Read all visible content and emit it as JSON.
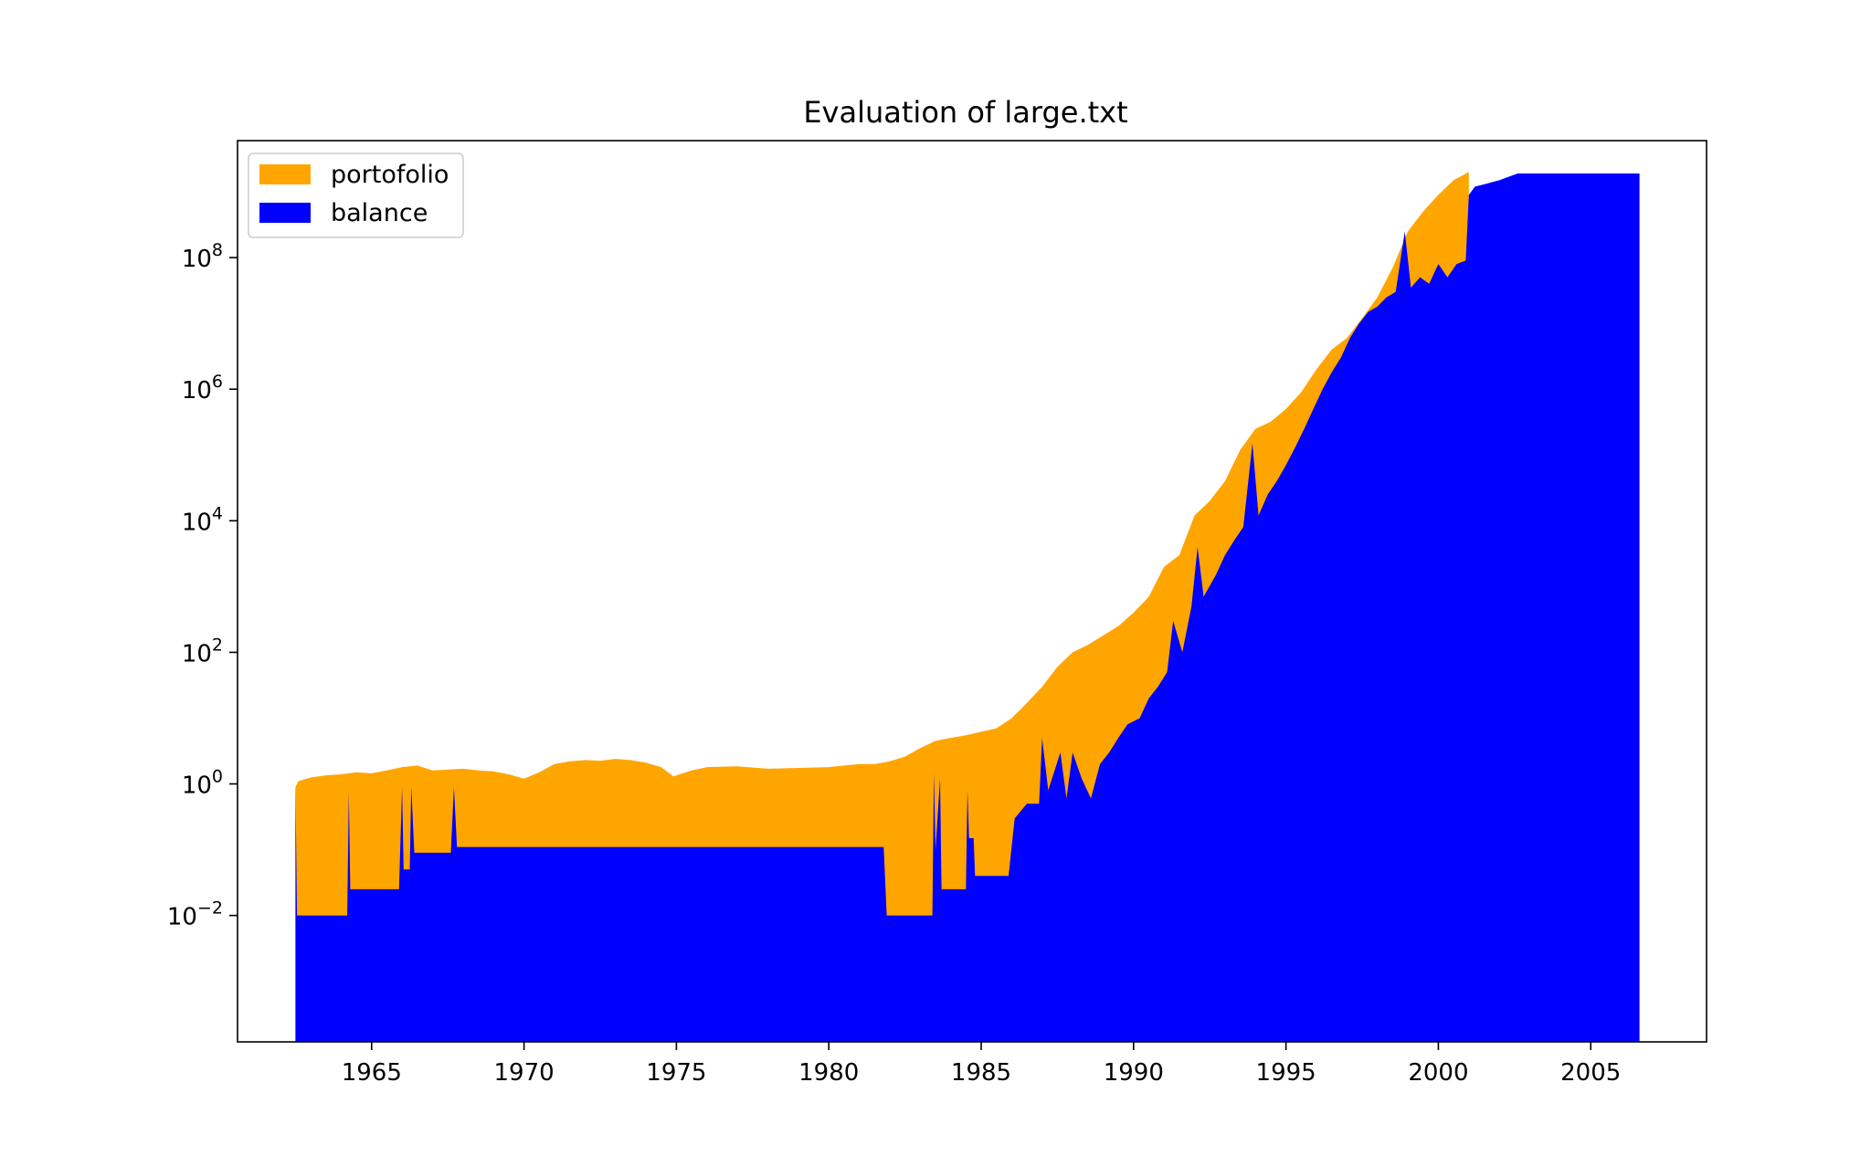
{
  "chart_data": {
    "type": "area",
    "title": "Evaluation of large.txt",
    "xlabel": "",
    "ylabel": "",
    "yscale": "log",
    "xlim": [
      1960.6,
      2008.8
    ],
    "ylim": [
      0.00012,
      6000000000
    ],
    "x_ticks": [
      1965,
      1970,
      1975,
      1980,
      1985,
      1990,
      1995,
      2000,
      2005
    ],
    "x_tick_labels": [
      "1965",
      "1970",
      "1975",
      "1980",
      "1985",
      "1990",
      "1995",
      "2000",
      "2005"
    ],
    "y_ticks": [
      {
        "value": 0.01,
        "base": "10",
        "exp": "−2"
      },
      {
        "value": 1,
        "base": "10",
        "exp": "0"
      },
      {
        "value": 100,
        "base": "10",
        "exp": "2"
      },
      {
        "value": 10000,
        "base": "10",
        "exp": "4"
      },
      {
        "value": 1000000,
        "base": "10",
        "exp": "6"
      },
      {
        "value": 100000000,
        "base": "10",
        "exp": "8"
      }
    ],
    "legend": {
      "position": "top-left",
      "entries": [
        "portofolio",
        "balance"
      ]
    },
    "grid": false,
    "series": [
      {
        "name": "portofolio",
        "color": "#FFA500",
        "points": [
          [
            1962.5,
            0.9
          ],
          [
            1962.6,
            1.1
          ],
          [
            1963.0,
            1.25
          ],
          [
            1963.5,
            1.35
          ],
          [
            1964.0,
            1.4
          ],
          [
            1964.5,
            1.5
          ],
          [
            1965.0,
            1.45
          ],
          [
            1965.5,
            1.6
          ],
          [
            1966.0,
            1.8
          ],
          [
            1966.5,
            1.9
          ],
          [
            1967.0,
            1.6
          ],
          [
            1967.5,
            1.65
          ],
          [
            1968.0,
            1.7
          ],
          [
            1968.5,
            1.6
          ],
          [
            1969.0,
            1.55
          ],
          [
            1969.5,
            1.4
          ],
          [
            1970.0,
            1.2
          ],
          [
            1970.5,
            1.5
          ],
          [
            1971.0,
            2.0
          ],
          [
            1971.5,
            2.2
          ],
          [
            1972.0,
            2.3
          ],
          [
            1972.5,
            2.25
          ],
          [
            1973.0,
            2.4
          ],
          [
            1973.5,
            2.3
          ],
          [
            1974.0,
            2.1
          ],
          [
            1974.5,
            1.8
          ],
          [
            1974.9,
            1.3
          ],
          [
            1975.5,
            1.6
          ],
          [
            1976.0,
            1.8
          ],
          [
            1977.0,
            1.85
          ],
          [
            1978.0,
            1.7
          ],
          [
            1979.0,
            1.75
          ],
          [
            1980.0,
            1.8
          ],
          [
            1980.5,
            1.9
          ],
          [
            1981.0,
            2.0
          ],
          [
            1981.5,
            2.0
          ],
          [
            1982.0,
            2.2
          ],
          [
            1982.5,
            2.6
          ],
          [
            1983.0,
            3.5
          ],
          [
            1983.5,
            4.5
          ],
          [
            1984.0,
            5.0
          ],
          [
            1984.5,
            5.5
          ],
          [
            1985.0,
            6.2
          ],
          [
            1985.5,
            7.0
          ],
          [
            1986.0,
            10
          ],
          [
            1986.5,
            17
          ],
          [
            1987.0,
            30
          ],
          [
            1987.5,
            60
          ],
          [
            1988.0,
            100
          ],
          [
            1988.5,
            130
          ],
          [
            1989.0,
            180
          ],
          [
            1989.5,
            250
          ],
          [
            1990.0,
            400
          ],
          [
            1990.5,
            700
          ],
          [
            1991.0,
            2000
          ],
          [
            1991.5,
            3000
          ],
          [
            1992.0,
            12000
          ],
          [
            1992.5,
            20000
          ],
          [
            1993.0,
            40000
          ],
          [
            1993.5,
            120000
          ],
          [
            1994.0,
            250000
          ],
          [
            1994.5,
            320000
          ],
          [
            1995.0,
            500000
          ],
          [
            1995.5,
            900000
          ],
          [
            1996.0,
            2000000
          ],
          [
            1996.5,
            4000000
          ],
          [
            1997.0,
            6000000
          ],
          [
            1997.5,
            12000000
          ],
          [
            1998.0,
            25000000
          ],
          [
            1998.5,
            70000000
          ],
          [
            1999.0,
            250000000
          ],
          [
            1999.5,
            500000000
          ],
          [
            2000.0,
            900000000
          ],
          [
            2000.5,
            1500000000
          ],
          [
            2001.0,
            2000000000
          ]
        ]
      },
      {
        "name": "balance",
        "color": "#0000FF",
        "points": [
          [
            1962.5,
            0.9
          ],
          [
            1962.55,
            0.01
          ],
          [
            1964.2,
            0.01
          ],
          [
            1964.25,
            0.75
          ],
          [
            1964.3,
            0.025
          ],
          [
            1965.9,
            0.025
          ],
          [
            1966.0,
            0.9
          ],
          [
            1966.05,
            0.05
          ],
          [
            1966.25,
            0.05
          ],
          [
            1966.3,
            0.9
          ],
          [
            1966.4,
            0.09
          ],
          [
            1967.6,
            0.09
          ],
          [
            1967.7,
            0.9
          ],
          [
            1967.8,
            0.11
          ],
          [
            1981.8,
            0.11
          ],
          [
            1981.9,
            0.01
          ],
          [
            1983.4,
            0.01
          ],
          [
            1983.45,
            1.5
          ],
          [
            1983.5,
            0.1
          ],
          [
            1983.65,
            1.2
          ],
          [
            1983.7,
            0.025
          ],
          [
            1984.5,
            0.025
          ],
          [
            1984.55,
            0.8
          ],
          [
            1984.6,
            0.15
          ],
          [
            1984.75,
            0.15
          ],
          [
            1984.8,
            0.04
          ],
          [
            1985.5,
            0.04
          ],
          [
            1985.9,
            0.04
          ],
          [
            1986.1,
            0.3
          ],
          [
            1986.5,
            0.5
          ],
          [
            1986.9,
            0.5
          ],
          [
            1987.0,
            5
          ],
          [
            1987.2,
            0.8
          ],
          [
            1987.6,
            3
          ],
          [
            1987.8,
            0.6
          ],
          [
            1988.0,
            3
          ],
          [
            1988.3,
            1.2
          ],
          [
            1988.6,
            0.6
          ],
          [
            1988.9,
            2
          ],
          [
            1989.2,
            3
          ],
          [
            1989.5,
            5
          ],
          [
            1989.8,
            8
          ],
          [
            1990.2,
            10
          ],
          [
            1990.5,
            20
          ],
          [
            1990.8,
            30
          ],
          [
            1991.1,
            50
          ],
          [
            1991.3,
            300
          ],
          [
            1991.6,
            100
          ],
          [
            1991.9,
            500
          ],
          [
            1992.1,
            4000
          ],
          [
            1992.3,
            700
          ],
          [
            1992.7,
            1500
          ],
          [
            1993.0,
            3000
          ],
          [
            1993.3,
            5000
          ],
          [
            1993.6,
            8000
          ],
          [
            1993.9,
            150000
          ],
          [
            1994.1,
            12000
          ],
          [
            1994.4,
            25000
          ],
          [
            1994.7,
            40000
          ],
          [
            1995.0,
            70000
          ],
          [
            1995.3,
            130000
          ],
          [
            1995.6,
            250000
          ],
          [
            1995.9,
            500000
          ],
          [
            1996.2,
            1000000
          ],
          [
            1996.5,
            1800000
          ],
          [
            1996.8,
            3000000
          ],
          [
            1997.1,
            6000000
          ],
          [
            1997.4,
            10000000
          ],
          [
            1997.7,
            15000000
          ],
          [
            1998.0,
            18000000
          ],
          [
            1998.3,
            25000000
          ],
          [
            1998.6,
            30000000
          ],
          [
            1998.9,
            250000000
          ],
          [
            1999.1,
            35000000
          ],
          [
            1999.4,
            50000000
          ],
          [
            1999.7,
            40000000
          ],
          [
            2000.0,
            80000000
          ],
          [
            2000.3,
            50000000
          ],
          [
            2000.6,
            80000000
          ],
          [
            2000.9,
            90000000
          ],
          [
            2001.0,
            900000000
          ],
          [
            2001.2,
            1200000000
          ],
          [
            2001.5,
            1300000000
          ],
          [
            2002.0,
            1500000000
          ],
          [
            2002.6,
            1900000000
          ],
          [
            2003.0,
            1900000000
          ],
          [
            2006.6,
            1900000000
          ]
        ]
      }
    ]
  }
}
